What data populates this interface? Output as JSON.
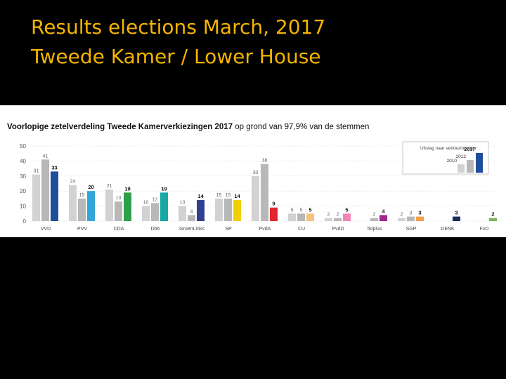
{
  "slide": {
    "title_line1": "Results elections March, 2017",
    "title_line2": "Tweede Kamer / Lower House"
  },
  "chart_data": {
    "type": "bar",
    "title_bold": "Voorlopige zetelverdeling Tweede Kamerverkiezingen 2017",
    "title_rest": " op grond van 97,9% van de stemmen",
    "ylim": [
      0,
      50
    ],
    "yticks": [
      0,
      10,
      20,
      30,
      40,
      50
    ],
    "categories": [
      "VVD",
      "PVV",
      "CDA",
      "D66",
      "GroenLinks",
      "SP",
      "PvdA",
      "CU",
      "PvdD",
      "50plus",
      "SGP",
      "DENK",
      "FvD"
    ],
    "series": [
      {
        "name": "Uitslag naar verkiezingsjaar 2010",
        "color": "#d2d2d2",
        "values": [
          31,
          24,
          21,
          10,
          10,
          15,
          30,
          5,
          2,
          0,
          2,
          0,
          0
        ]
      },
      {
        "name": "2012",
        "color": "#b8b8b8",
        "values": [
          41,
          15,
          13,
          12,
          4,
          15,
          38,
          5,
          2,
          2,
          3,
          0,
          0
        ]
      },
      {
        "name": "2017",
        "values": [
          33,
          20,
          19,
          19,
          14,
          14,
          9,
          5,
          5,
          4,
          3,
          3,
          2
        ]
      }
    ],
    "colors_2017": [
      "#1f4e9a",
      "#34a4dc",
      "#2d9f49",
      "#19a8a6",
      "#2f3f92",
      "#f2d000",
      "#e2262b",
      "#f7c27c",
      "#f285b6",
      "#a1278f",
      "#f2a24b",
      "#18305a",
      "#7db35a"
    ],
    "legend": {
      "heading": "Uitslag naar verkiezingsjaar",
      "labels": [
        "2010",
        "2012",
        "2017"
      ],
      "placement": "top-right"
    },
    "grid": true
  }
}
